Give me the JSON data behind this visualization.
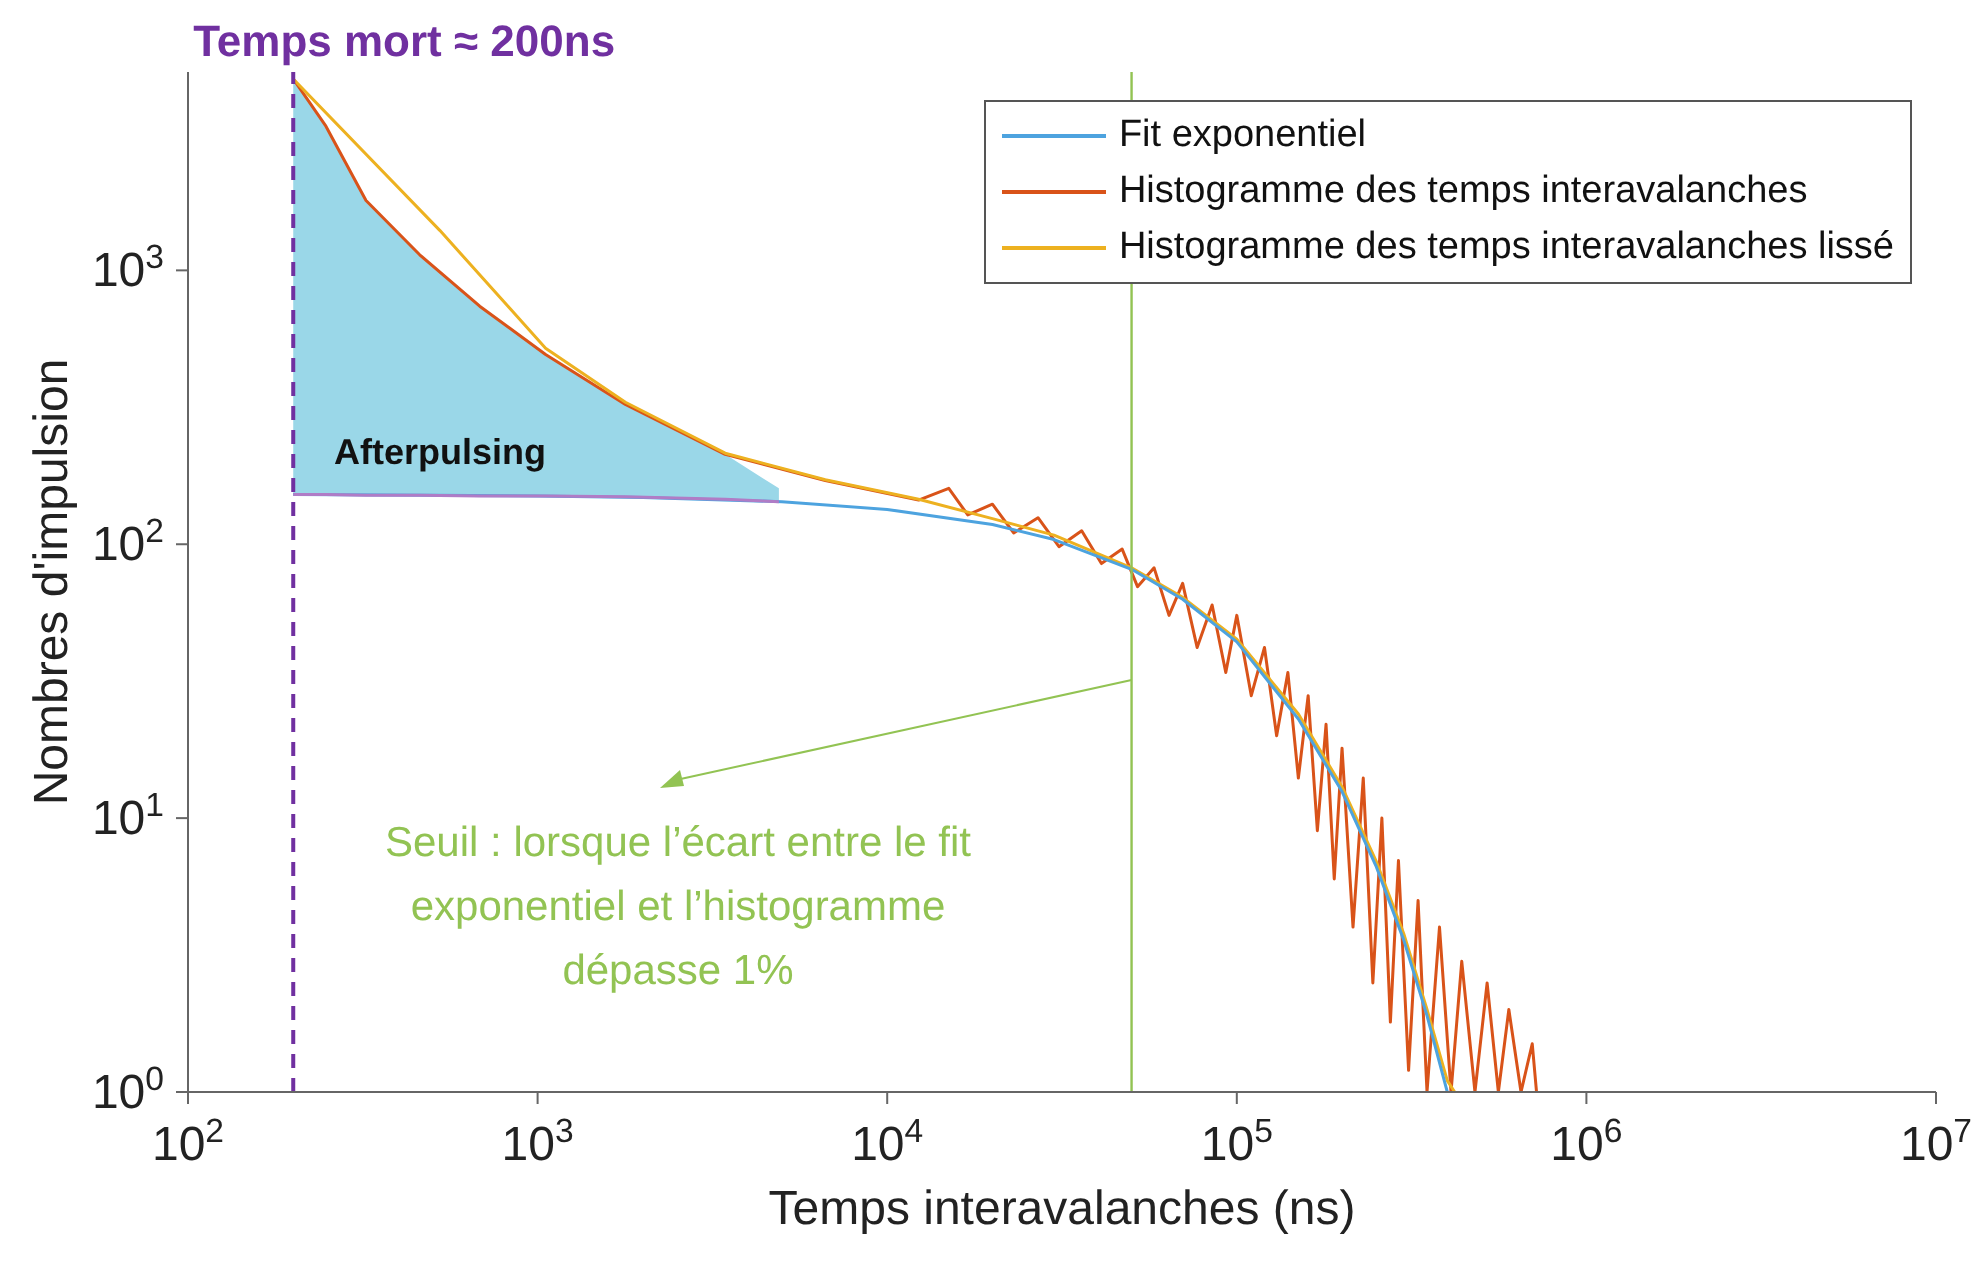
{
  "chart_data": {
    "type": "line",
    "xlabel": "Temps interavalanches (ns)",
    "ylabel": "Nombres d'impulsion",
    "log": "xy",
    "xlim": [
      100,
      10000000
    ],
    "xticks": [
      {
        "value": 100,
        "label": "10$^{2}$"
      },
      {
        "value": 1000,
        "label": "10$^{3}$"
      },
      {
        "value": 10000,
        "label": "10$^{4}$"
      },
      {
        "value": 100000,
        "label": "10$^{5}$"
      },
      {
        "value": 1000000,
        "label": "10$^{6}$"
      },
      {
        "value": 10000000,
        "label": "10$^{7}$"
      }
    ],
    "ylim": [
      1,
      5300
    ],
    "yticks": [
      {
        "value": 1,
        "label": "10$^{0}$"
      },
      {
        "value": 10,
        "label": "10$^{1}$"
      },
      {
        "value": 100,
        "label": "10$^{2}$"
      },
      {
        "value": 1000,
        "label": "10$^{3}$"
      }
    ],
    "legend": "top right",
    "marker": "none",
    "line_style": "solid",
    "series": [
      {
        "color": "#b07cc6",
        "x": [
          200,
          248,
          323,
          460,
          683,
          1054,
          1783,
          3440,
          4900
        ],
        "values": [
          152,
          152,
          151,
          151,
          150,
          150,
          149,
          146,
          143
        ],
        "lower": [
          152,
          152,
          151,
          151,
          150,
          150,
          149,
          146,
          143
        ],
        "upper": [
          5000,
          3360,
          1800,
          1140,
          740,
          493,
          324,
          213,
          160
        ]
      },
      {
        "name": "Fit exponentiel",
        "color": "#4da3df",
        "x": [
          200,
          500,
          1000,
          2000,
          5000,
          10000,
          20000,
          30000,
          50000,
          70000,
          100000,
          150000,
          200000,
          250000,
          300000,
          350000,
          400000
        ],
        "values": [
          152,
          151,
          150,
          148,
          143,
          134,
          118,
          104,
          81,
          63,
          44,
          23,
          12.5,
          6.7,
          3.6,
          1.9,
          1.0
        ]
      },
      {
        "name": "Histogramme des temps interavalanches",
        "color": "#d95319",
        "x": [
          200,
          248,
          323,
          460,
          683,
          1054,
          1783,
          3440,
          6650,
          12300,
          15000,
          17000,
          20000,
          23000,
          27000,
          31000,
          36000,
          41000,
          47000,
          52000,
          58000,
          64000,
          70000,
          77000,
          85000,
          93000,
          100000,
          110000,
          120000,
          130000,
          140000,
          150000,
          160000,
          170000,
          180000,
          190000,
          200000,
          215000,
          230000,
          245000,
          260000,
          275000,
          290000,
          310000,
          330000,
          350000,
          380000,
          410000,
          440000,
          480000,
          520000,
          560000,
          600000,
          650000,
          700000,
          720000
        ],
        "values": [
          5000,
          3360,
          1800,
          1140,
          740,
          493,
          324,
          213,
          171,
          145,
          160,
          128,
          140,
          110,
          125,
          98,
          112,
          85,
          96,
          70,
          82,
          55,
          72,
          42,
          60,
          34,
          55,
          28,
          42,
          20,
          34,
          14,
          28,
          9,
          22,
          6,
          18,
          4,
          14,
          2.5,
          10,
          1.8,
          7,
          1.2,
          5,
          1,
          4,
          1,
          3,
          1,
          2.5,
          1,
          2,
          1,
          1.5,
          1
        ]
      },
      {
        "name": "Histogramme des temps interavalanches lissé",
        "color": "#edb120",
        "x": [
          200,
          525,
          1054,
          1783,
          3440,
          6650,
          12300,
          20000,
          30000,
          50000,
          70000,
          100000,
          150000,
          200000,
          250000,
          300000,
          350000,
          400000,
          420000
        ],
        "values": [
          5000,
          1400,
          520,
          330,
          215,
          172,
          146,
          124,
          108,
          82,
          64,
          45,
          24,
          13,
          7,
          3.8,
          2,
          1.1,
          1
        ]
      }
    ],
    "ref_lines": [
      {
        "axis": "x",
        "value": 200,
        "label": "Temps mort ≈ 200ns",
        "color": "#7030a0",
        "line_style": "dashed"
      },
      {
        "axis": "x",
        "value": 50000,
        "label": "Seuil : lorsque l’écart entre le fit exponentiel et l’histogramme dépasse  1%",
        "color": "#92c353",
        "line_style": "solid"
      }
    ],
    "annotations": [
      "Afterpulsing"
    ]
  }
}
